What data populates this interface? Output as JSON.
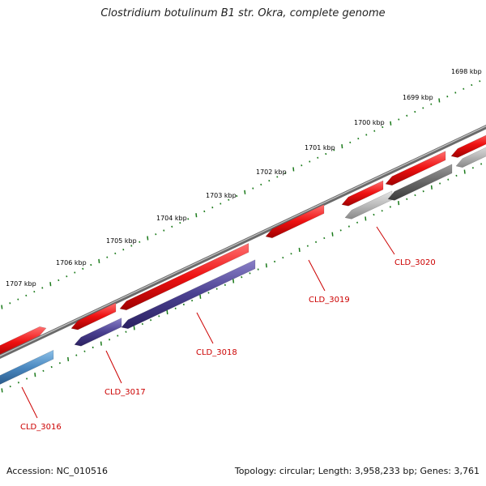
{
  "title": "Clostridium botulinum B1 str. Okra, complete genome",
  "footer": {
    "accession": "Accession: NC_010516",
    "summary": "Topology: circular; Length: 3,958,233 bp; Genes: 3,761"
  },
  "scale": {
    "tick_color": "#1a7a1a",
    "labels": [
      "1698 kbp",
      "1699 kbp",
      "1700 kbp",
      "1701 kbp",
      "1702 kbp",
      "1703 kbp",
      "1704 kbp",
      "1705 kbp",
      "1706 kbp",
      "1707 kbp"
    ]
  },
  "backbone_color": "#7a7a7a",
  "gene_labels": [
    "CLD_3016",
    "CLD_3017",
    "CLD_3018",
    "CLD_3019",
    "CLD_3020"
  ],
  "colors": {
    "cds_red": "#ee1111",
    "navy": "#4a4090",
    "blue": "#4a88c0",
    "dark_gray": "#666666",
    "light_gray": "#bbbbbb",
    "label_red": "#cc0000"
  }
}
